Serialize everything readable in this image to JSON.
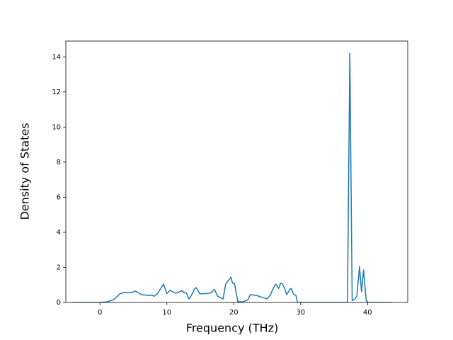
{
  "chart_data": {
    "type": "line",
    "x_label": "Frequency (THz)",
    "y_label": "Density of States",
    "xlim": [
      -5.1,
      46.0
    ],
    "ylim": [
      0,
      14.9
    ],
    "xticks": [
      0,
      10,
      20,
      30,
      40
    ],
    "yticks": [
      0,
      2,
      4,
      6,
      8,
      10,
      12,
      14
    ],
    "grid": false,
    "series": [
      {
        "color": "#1f77b4",
        "x": [
          -4.1,
          0,
          1.0,
          2.0,
          2.6,
          3.0,
          3.6,
          4.6,
          5.0,
          5.3,
          6.2,
          7.3,
          7.8,
          8.1,
          8.6,
          9.5,
          10.0,
          10.5,
          11.1,
          11.6,
          12.2,
          12.6,
          12.9,
          13.3,
          13.6,
          14.1,
          14.4,
          14.9,
          15.8,
          16.6,
          17.1,
          17.6,
          18.4,
          18.8,
          19.3,
          19.6,
          19.8,
          20.1,
          20.6,
          21.3,
          22.1,
          22.5,
          23.4,
          24.2,
          25.0,
          25.5,
          25.9,
          26.3,
          26.7,
          27.0,
          27.3,
          27.6,
          27.9,
          28.4,
          28.6,
          28.9,
          29.3,
          29.5,
          36.9,
          37.0,
          37.35,
          37.7,
          38.1,
          38.4,
          38.8,
          39.1,
          39.4,
          39.8,
          40.1,
          43.6
        ],
        "values": [
          0,
          0,
          0.03,
          0.15,
          0.35,
          0.5,
          0.57,
          0.57,
          0.6,
          0.65,
          0.45,
          0.4,
          0.42,
          0.35,
          0.5,
          1.05,
          0.5,
          0.7,
          0.55,
          0.55,
          0.68,
          0.55,
          0.55,
          0.2,
          0.35,
          0.75,
          0.85,
          0.5,
          0.5,
          0.55,
          0.75,
          0.35,
          0.2,
          1.05,
          1.3,
          1.45,
          1.1,
          1.1,
          0.05,
          0.03,
          0.15,
          0.45,
          0.4,
          0.3,
          0.2,
          0.45,
          0.8,
          1.05,
          0.8,
          1.1,
          1.05,
          0.8,
          0.45,
          0.75,
          0.8,
          0.5,
          0.4,
          0,
          0,
          0,
          14.2,
          0.1,
          0.2,
          0.35,
          2.05,
          0.6,
          1.85,
          0.1,
          0,
          0
        ]
      }
    ]
  }
}
